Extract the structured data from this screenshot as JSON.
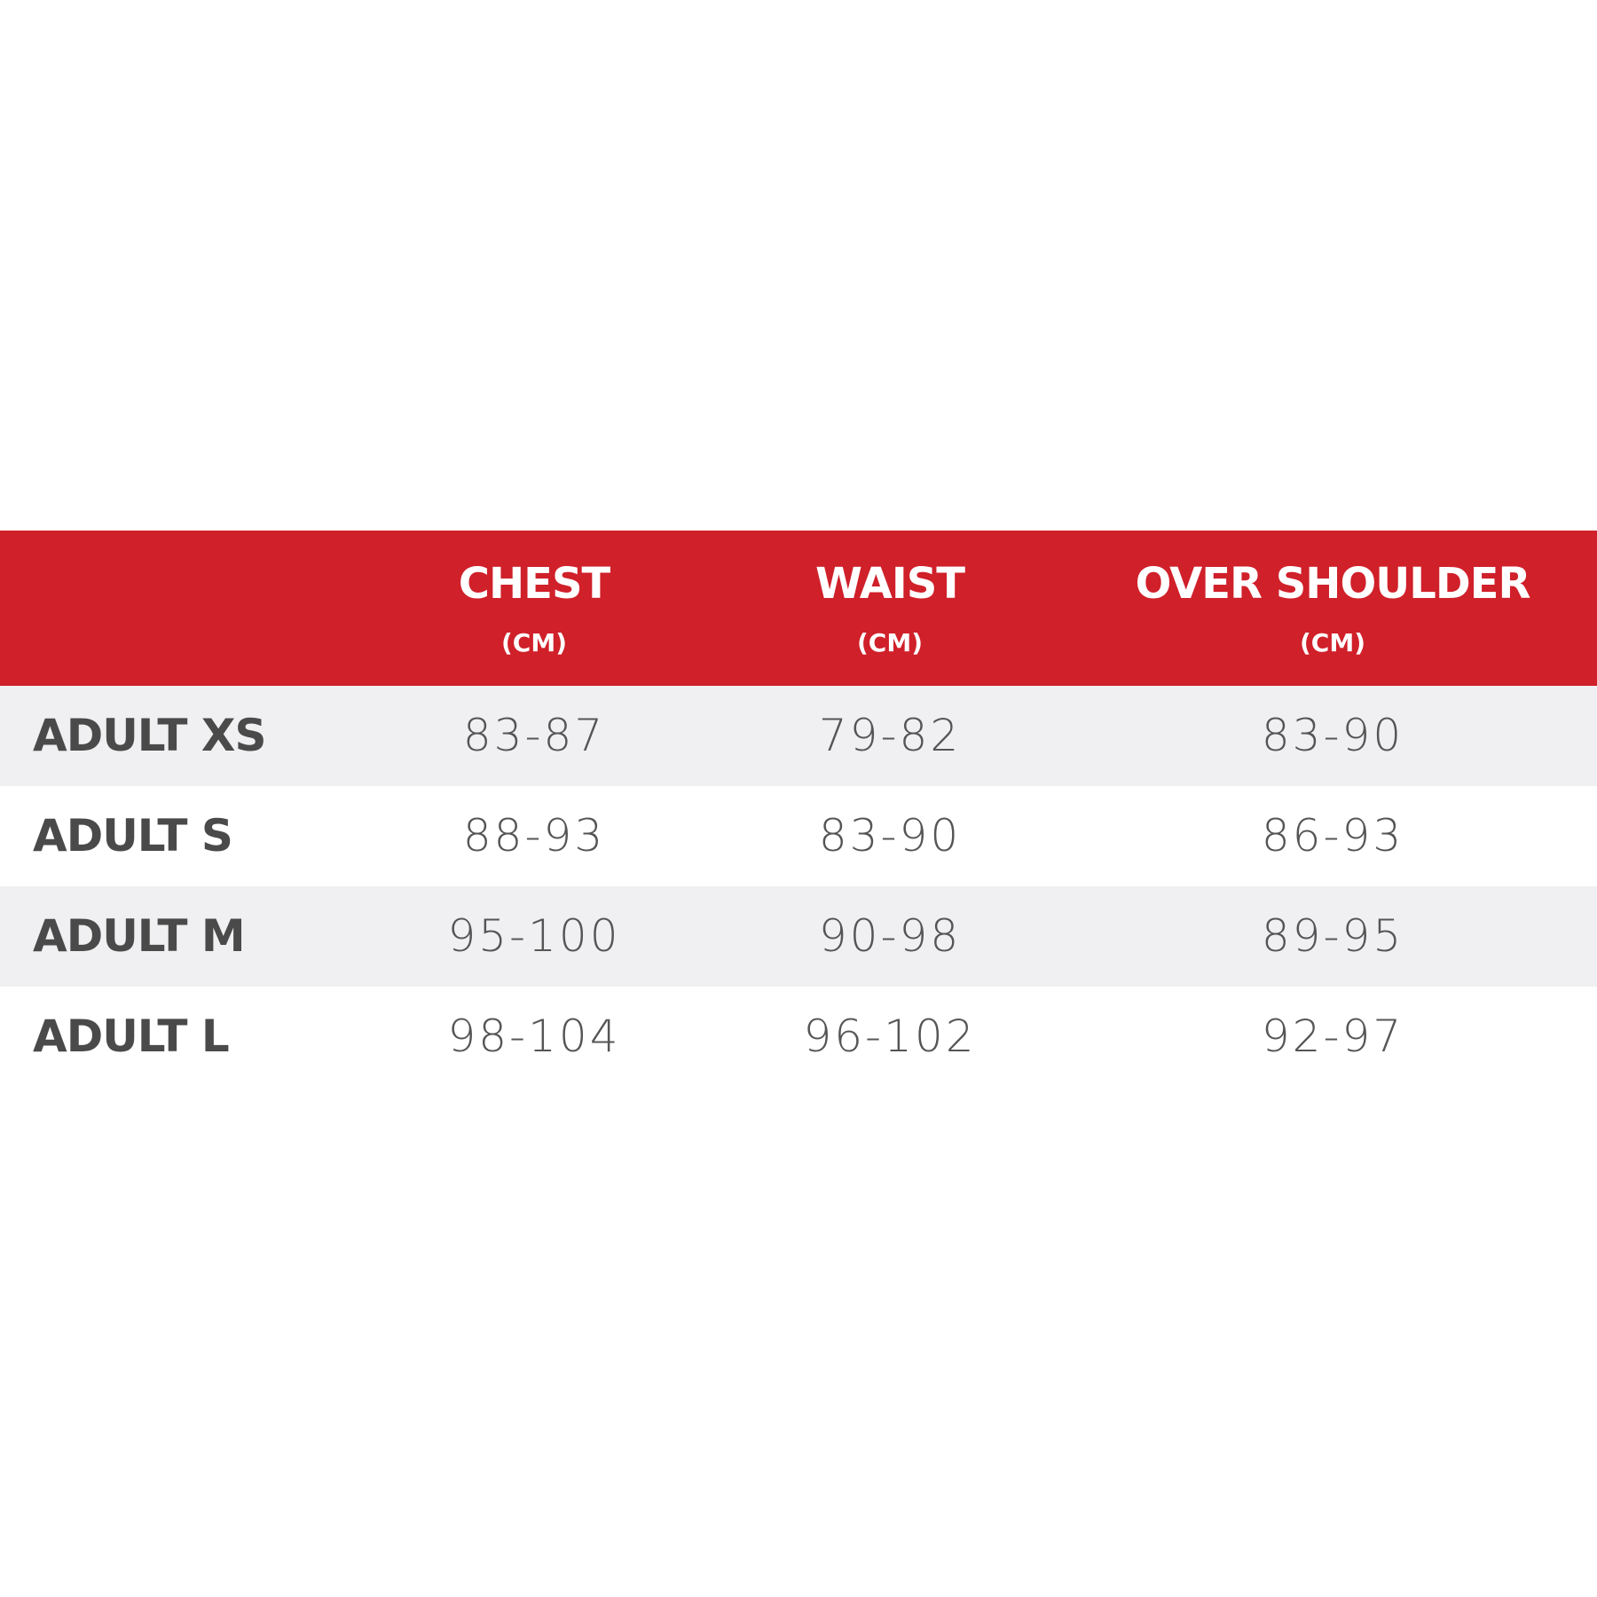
{
  "table": {
    "columns": [
      {
        "title": "CHEST",
        "unit": "(CM)"
      },
      {
        "title": "WAIST",
        "unit": "(CM)"
      },
      {
        "title": "OVER SHOULDER",
        "unit": "(CM)"
      }
    ],
    "rows": [
      {
        "label": "ADULT XS",
        "values": [
          "83-87",
          "79-82",
          "83-90"
        ]
      },
      {
        "label": "ADULT S",
        "values": [
          "88-93",
          "83-90",
          "86-93"
        ]
      },
      {
        "label": "ADULT M",
        "values": [
          "95-100",
          "90-98",
          "89-95"
        ]
      },
      {
        "label": "ADULT L",
        "values": [
          "98-104",
          "96-102",
          "92-97"
        ]
      }
    ]
  }
}
